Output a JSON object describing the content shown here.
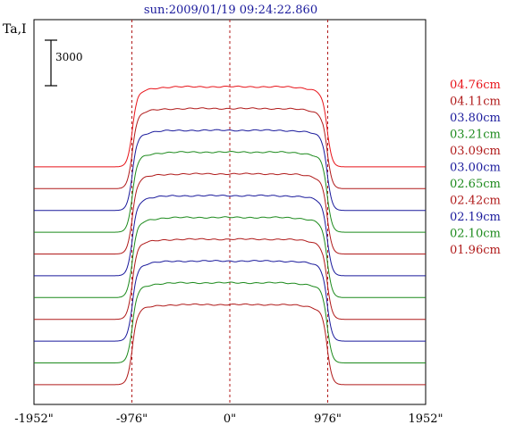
{
  "chart_data": {
    "type": "line",
    "title": "sun:2009/01/19 09:24:22.860",
    "ylabel": "Ta,I",
    "scale_bar_label": "3000",
    "x_ticks": [
      {
        "value": -1952,
        "label": "-1952\""
      },
      {
        "value": -976,
        "label": "-976\""
      },
      {
        "value": 0,
        "label": "0\""
      },
      {
        "value": 976,
        "label": "976\""
      },
      {
        "value": 1952,
        "label": "1952\""
      }
    ],
    "xlim": [
      -1952,
      1952
    ],
    "vertical_markers": [
      -976,
      0,
      976
    ],
    "grid": false,
    "legend_position": "right",
    "series": [
      {
        "name": "04.76cm",
        "color": "#e8141a",
        "offset": 10,
        "baseline": 180,
        "peak": 16000
      },
      {
        "name": "04.11cm",
        "color": "#b01a1a",
        "offset": 9,
        "baseline": 180,
        "peak": 16000
      },
      {
        "name": "03.80cm",
        "color": "#1a1a9c",
        "offset": 8,
        "baseline": 180,
        "peak": 16000
      },
      {
        "name": "03.21cm",
        "color": "#1c8a1c",
        "offset": 7,
        "baseline": 180,
        "peak": 16000
      },
      {
        "name": "03.09cm",
        "color": "#b01a1a",
        "offset": 6,
        "baseline": 180,
        "peak": 16000
      },
      {
        "name": "03.00cm",
        "color": "#1a1a9c",
        "offset": 5,
        "baseline": 180,
        "peak": 16000
      },
      {
        "name": "02.65cm",
        "color": "#1c8a1c",
        "offset": 4,
        "baseline": 180,
        "peak": 16000
      },
      {
        "name": "02.42cm",
        "color": "#b01a1a",
        "offset": 3,
        "baseline": 180,
        "peak": 16000
      },
      {
        "name": "02.19cm",
        "color": "#1a1a9c",
        "offset": 2,
        "baseline": 180,
        "peak": 16000
      },
      {
        "name": "02.10cm",
        "color": "#1c8a1c",
        "offset": 1,
        "baseline": 180,
        "peak": 16000
      },
      {
        "name": "01.96cm",
        "color": "#b01a1a",
        "offset": 0,
        "baseline": 180,
        "peak": 16000
      }
    ]
  }
}
